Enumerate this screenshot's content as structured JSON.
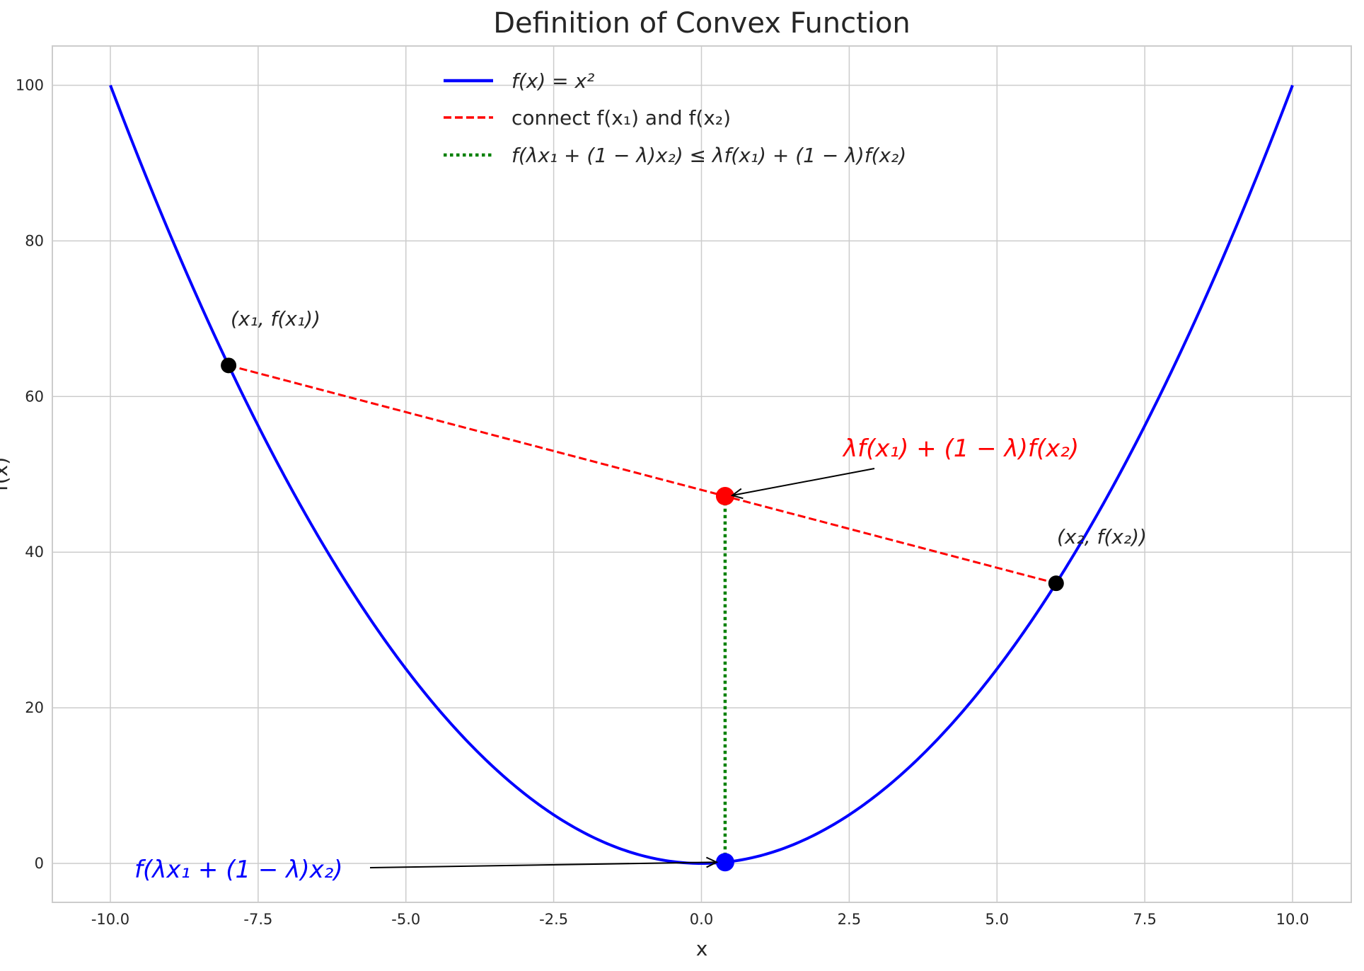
{
  "chart_data": {
    "type": "line",
    "title": "Definition of Convex Function",
    "xlabel": "x",
    "ylabel": "f(x)",
    "xlim": [
      -11,
      11
    ],
    "ylim": [
      -5,
      105
    ],
    "grid": true,
    "x_ticks": [
      "-10.0",
      "-7.5",
      "-5.0",
      "-2.5",
      "0.0",
      "2.5",
      "5.0",
      "7.5",
      "10.0"
    ],
    "y_ticks": [
      "0",
      "20",
      "40",
      "60",
      "80",
      "100"
    ],
    "legend_position": "top-center",
    "series": [
      {
        "name": "f(x) = x²",
        "style": "solid",
        "color": "#0000ff",
        "function": "x^2",
        "x_range": [
          -10,
          10
        ]
      },
      {
        "name": "connect f(x₁) and f(x₂)",
        "style": "dashed",
        "color": "#ff0000",
        "x": [
          -8,
          6
        ],
        "y": [
          64,
          36
        ]
      },
      {
        "name": "f(λx₁ + (1 − λ)x₂) ≤ λf(x₁) + (1 − λ)f(x₂)",
        "style": "dotted",
        "color": "#008000",
        "x": [
          0.4,
          0.4
        ],
        "y": [
          0.16,
          47.2
        ]
      }
    ],
    "points": [
      {
        "x": -8,
        "y": 64,
        "color": "#000000",
        "label": "(x₁, f(x₁))"
      },
      {
        "x": 6,
        "y": 36,
        "color": "#000000",
        "label": "(x₂, f(x₂))"
      },
      {
        "x": 0.4,
        "y": 47.2,
        "color": "#ff0000"
      },
      {
        "x": 0.4,
        "y": 0.16,
        "color": "#0000ff"
      }
    ],
    "annotations": [
      {
        "text": "λf(x₁) + (1 − λ)f(x₂)",
        "color": "#ff0000",
        "arrow_to": [
          0.4,
          47.2
        ]
      },
      {
        "text": "f(λx₁ + (1 − λ)x₂)",
        "color": "#0000ff",
        "arrow_to": [
          0.4,
          0.16
        ]
      }
    ]
  }
}
